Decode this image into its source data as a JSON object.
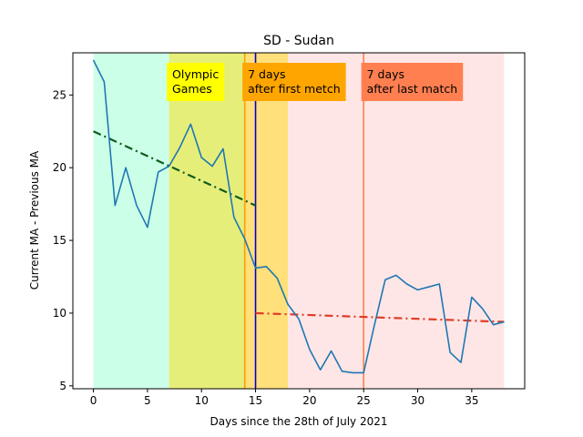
{
  "chart_data": {
    "type": "line",
    "title": "SD - Sudan",
    "xlabel": "Days since the 28th of July 2021",
    "ylabel": "Current MA - Previous MA",
    "xlim": [
      -1.9,
      39.9
    ],
    "ylim": [
      4.8,
      27.9
    ],
    "xticks": [
      0,
      5,
      10,
      15,
      20,
      25,
      30,
      35
    ],
    "yticks": [
      5,
      10,
      15,
      20,
      25
    ],
    "grid": false,
    "series": [
      {
        "color": "#1f77b4",
        "x": [
          0,
          1,
          2,
          3,
          4,
          5,
          6,
          7,
          8,
          9,
          10,
          11,
          12,
          13,
          14,
          15,
          16,
          17,
          18,
          19,
          20,
          21,
          22,
          23,
          24,
          25,
          26,
          27,
          28,
          29,
          30,
          31,
          32,
          33,
          34,
          35,
          36,
          37,
          38
        ],
        "y": [
          27.4,
          25.9,
          17.4,
          20.0,
          17.4,
          15.9,
          19.7,
          20.1,
          21.4,
          23.0,
          20.7,
          20.1,
          21.3,
          16.6,
          15.1,
          13.1,
          13.2,
          12.4,
          10.6,
          9.6,
          7.5,
          6.1,
          7.4,
          6.0,
          5.9,
          5.9,
          9.2,
          12.3,
          12.6,
          12.0,
          11.6,
          11.8,
          12.0,
          7.3,
          6.6,
          11.1,
          10.3,
          9.2,
          9.4
        ]
      }
    ],
    "trend_lines": [
      {
        "color": "#0d5c1e",
        "x": [
          0,
          15
        ],
        "y": [
          22.5,
          17.4
        ]
      },
      {
        "color": "#e03c28",
        "x": [
          15,
          38
        ],
        "y": [
          10.0,
          9.4
        ]
      }
    ],
    "bands": [
      {
        "from": 0,
        "to": 7,
        "color": "#ccffe8"
      },
      {
        "from": 7,
        "to": 14,
        "color": "#e6ee7a"
      },
      {
        "from": 14,
        "to": 18,
        "color": "#ffe07a"
      },
      {
        "from": 18,
        "to": 38,
        "color": "#ffe6e6"
      }
    ],
    "vlines": [
      {
        "x": 14,
        "color": "#ff9e00"
      },
      {
        "x": 15,
        "color": "#0000cc"
      },
      {
        "x": 25,
        "color": "#ff7f50"
      }
    ],
    "annotations": [
      {
        "lines": [
          "Olympic",
          "Games"
        ],
        "x": 6.7,
        "bg": "#ffff00"
      },
      {
        "lines": [
          "7 days",
          "after first metch"
        ],
        "x": 13.7,
        "bg": "#ffa500"
      },
      {
        "lines": [
          "7 days",
          "after last match"
        ],
        "x": 24.7,
        "bg": "#ff7f50"
      }
    ]
  }
}
